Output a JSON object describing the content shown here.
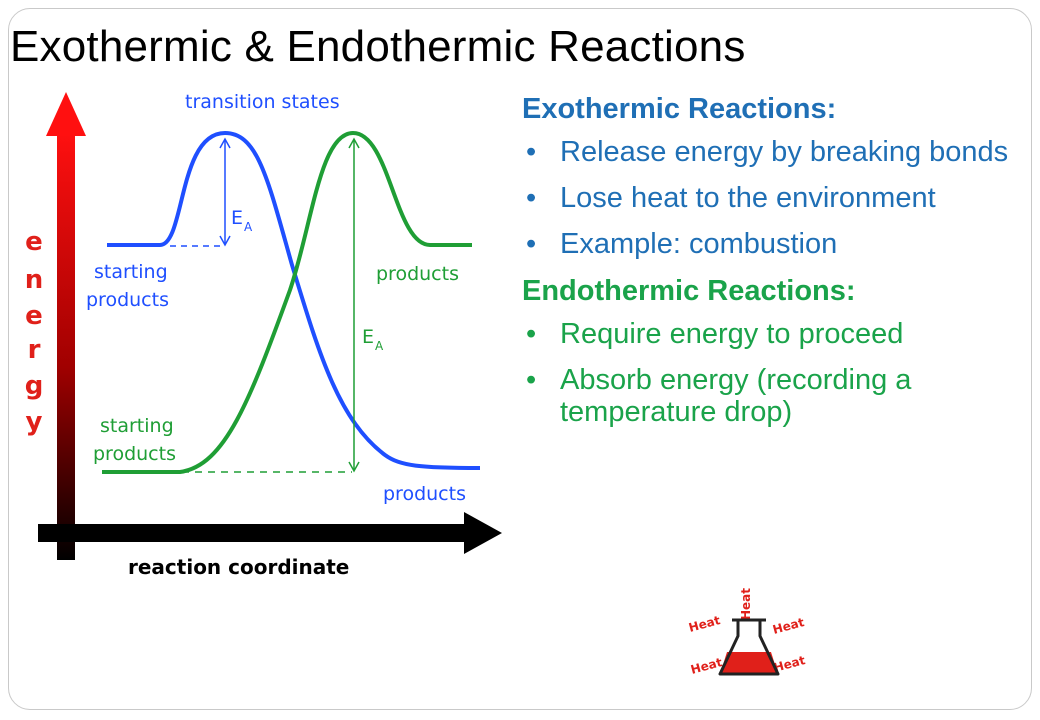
{
  "slide": {
    "title": "Exothermic & Endothermic Reactions"
  },
  "diagram": {
    "y_axis_letters": [
      "e",
      "n",
      "e",
      "r",
      "g",
      "y"
    ],
    "x_axis_label": "reaction coordinate",
    "top_label": "transition states",
    "exo_start_label_1": "starting",
    "exo_start_label_2": "products",
    "exo_end_label": "products",
    "endo_start_label_1": "starting",
    "endo_start_label_2": "products",
    "endo_end_label": "products",
    "ea_main": "E",
    "ea_sub": "A",
    "colors": {
      "exo_curve": "#1f4fff",
      "endo_curve": "#1f9e35",
      "axis": "#000000",
      "y_arrow_top": "#ff0000"
    }
  },
  "exothermic": {
    "heading": "Exothermic Reactions:",
    "bullets": [
      "Release energy by breaking bonds",
      "Lose heat to the environment",
      "Example: combustion"
    ]
  },
  "endothermic": {
    "heading": "Endothermic Reactions:",
    "bullets": [
      "Require energy to proceed",
      "Absorb energy (recording a temperature drop)"
    ]
  },
  "flask_image": {
    "labels": [
      "Heat",
      "Heat",
      "Heat",
      "Heat",
      "Heat"
    ]
  },
  "bullet_glyph": "•"
}
